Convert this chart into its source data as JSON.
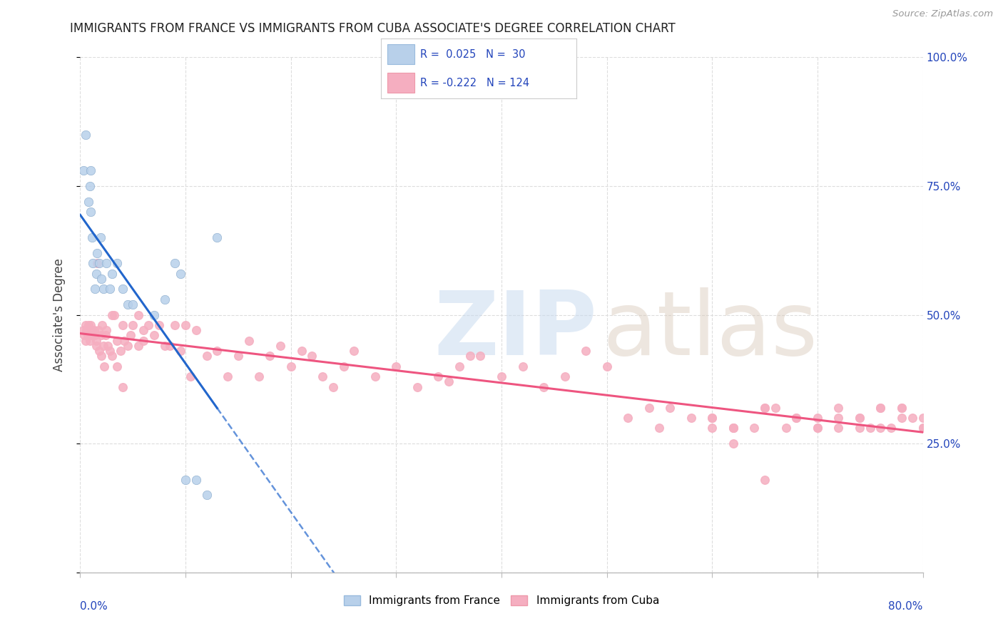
{
  "title": "IMMIGRANTS FROM FRANCE VS IMMIGRANTS FROM CUBA ASSOCIATE'S DEGREE CORRELATION CHART",
  "source": "Source: ZipAtlas.com",
  "ylabel": "Associate's Degree",
  "legend_france_label": "Immigrants from France",
  "legend_cuba_label": "Immigrants from Cuba",
  "france_R": "0.025",
  "france_N": "30",
  "cuba_R": "-0.222",
  "cuba_N": "124",
  "france_color": "#b8d0ea",
  "cuba_color": "#f5aec0",
  "france_line_color": "#2266cc",
  "cuba_line_color": "#ee5580",
  "legend_text_color": "#2244bb",
  "ytick_color": "#2244bb",
  "xlim": [
    0,
    80
  ],
  "ylim": [
    0,
    100
  ],
  "yticks": [
    0,
    25,
    50,
    75,
    100
  ],
  "ytick_labels": [
    "",
    "25.0%",
    "50.0%",
    "75.0%",
    "100.0%"
  ],
  "france_x": [
    0.3,
    0.5,
    0.8,
    0.9,
    1.0,
    1.0,
    1.1,
    1.2,
    1.4,
    1.5,
    1.6,
    1.8,
    1.9,
    2.0,
    2.2,
    2.5,
    2.8,
    3.0,
    3.5,
    4.0,
    4.5,
    5.0,
    7.0,
    8.0,
    9.0,
    9.5,
    10.0,
    11.0,
    12.0,
    13.0
  ],
  "france_y": [
    78,
    85,
    72,
    75,
    78,
    70,
    65,
    60,
    55,
    58,
    62,
    60,
    65,
    57,
    55,
    60,
    55,
    58,
    60,
    55,
    52,
    52,
    50,
    53,
    60,
    58,
    18,
    18,
    15,
    65
  ],
  "cuba_x": [
    0.3,
    0.4,
    0.5,
    0.5,
    0.6,
    0.7,
    0.8,
    0.9,
    1.0,
    1.0,
    1.1,
    1.2,
    1.3,
    1.4,
    1.5,
    1.5,
    1.6,
    1.7,
    1.8,
    2.0,
    2.0,
    2.1,
    2.2,
    2.3,
    2.4,
    2.5,
    2.6,
    2.8,
    3.0,
    3.0,
    3.2,
    3.5,
    3.5,
    3.8,
    4.0,
    4.0,
    4.2,
    4.5,
    4.8,
    5.0,
    5.5,
    5.5,
    6.0,
    6.0,
    6.5,
    7.0,
    7.5,
    8.0,
    8.5,
    9.0,
    9.5,
    10.0,
    10.5,
    11.0,
    12.0,
    13.0,
    14.0,
    15.0,
    16.0,
    17.0,
    18.0,
    19.0,
    20.0,
    21.0,
    22.0,
    23.0,
    24.0,
    25.0,
    26.0,
    28.0,
    30.0,
    32.0,
    34.0,
    35.0,
    36.0,
    37.0,
    38.0,
    40.0,
    42.0,
    44.0,
    46.0,
    48.0,
    50.0,
    52.0,
    54.0,
    55.0,
    56.0,
    58.0,
    60.0,
    62.0,
    64.0,
    65.0,
    66.0,
    67.0,
    68.0,
    70.0,
    72.0,
    74.0,
    75.0,
    76.0,
    77.0,
    78.0,
    79.0,
    80.0,
    60.0,
    62.0,
    65.0,
    68.0,
    70.0,
    72.0,
    74.0,
    76.0,
    78.0,
    80.0,
    60.0,
    62.0,
    65.0,
    70.0,
    72.0,
    74.0,
    76.0,
    78.0,
    80.0,
    62.0
  ],
  "cuba_y": [
    47,
    46,
    48,
    45,
    47,
    46,
    48,
    45,
    48,
    46,
    47,
    46,
    47,
    46,
    45,
    44,
    60,
    47,
    43,
    46,
    42,
    48,
    44,
    40,
    46,
    47,
    44,
    43,
    50,
    42,
    50,
    45,
    40,
    43,
    48,
    36,
    45,
    44,
    46,
    48,
    50,
    44,
    47,
    45,
    48,
    46,
    48,
    44,
    44,
    48,
    43,
    48,
    38,
    47,
    42,
    43,
    38,
    42,
    45,
    38,
    42,
    44,
    40,
    43,
    42,
    38,
    36,
    40,
    43,
    38,
    40,
    36,
    38,
    37,
    40,
    42,
    42,
    38,
    40,
    36,
    38,
    43,
    40,
    30,
    32,
    28,
    32,
    30,
    28,
    25,
    28,
    18,
    32,
    28,
    30,
    28,
    32,
    30,
    28,
    32,
    28,
    32,
    30,
    28,
    30,
    28,
    32,
    30,
    28,
    30,
    28,
    32,
    30,
    28,
    30,
    28,
    32,
    30,
    28,
    30,
    28,
    32,
    30,
    28
  ]
}
